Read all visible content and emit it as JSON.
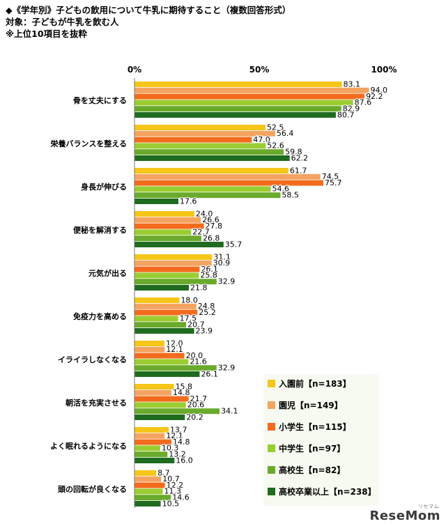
{
  "header": {
    "title": "◆《学年別》子どもの飲用について牛乳に期待すること（複数回答形式）",
    "subject": "対象：子どもが牛乳を飲む人",
    "note": "※上位10項目を抜粋"
  },
  "watermark": {
    "text": "ReseMom",
    "kana": "リセマム"
  },
  "chart_data": {
    "type": "bar",
    "orientation": "horizontal",
    "x_ticks": [
      "0%",
      "50%",
      "100%"
    ],
    "xlim": [
      0,
      100
    ],
    "categories": [
      "骨を丈夫にする",
      "栄養バランスを整える",
      "身長が伸びる",
      "便秘を解消する",
      "元気が出る",
      "免疫力を高める",
      "イライラしなくなる",
      "朝活を充実させる",
      "よく眠れるようになる",
      "頭の回転が良くなる"
    ],
    "series": [
      {
        "name": "入園前【n=183】",
        "color": "#f5c518",
        "values": [
          83.1,
          52.5,
          61.7,
          24.0,
          31.1,
          18.0,
          12.0,
          15.8,
          13.7,
          8.7
        ],
        "labels": [
          "83.1",
          "52.5",
          "61.7",
          "24.0",
          "31.1",
          "18.0",
          "12.0",
          "15.8",
          "13.7",
          "8.7"
        ]
      },
      {
        "name": "園児【n=149】",
        "color": "#f4a460",
        "values": [
          94.0,
          56.4,
          74.5,
          26.6,
          30.9,
          24.8,
          12.1,
          14.8,
          12.1,
          10.7
        ],
        "labels": [
          "94.0",
          "56.4",
          "74.5",
          "26.6",
          "30.9",
          "24.8",
          "12.1",
          "14.8",
          "12.1",
          "10.7"
        ]
      },
      {
        "name": "小学生【n=115】",
        "color": "#f36b1c",
        "values": [
          92.2,
          47.0,
          75.7,
          27.8,
          26.1,
          25.2,
          20.0,
          21.7,
          14.8,
          12.2
        ],
        "labels": [
          "92.2",
          "47.0",
          "75.7",
          "27.8",
          "26.1",
          "25.2",
          "20.0",
          "21.7",
          "14.8",
          "12.2"
        ]
      },
      {
        "name": "中学生【n=97】",
        "color": "#9acd32",
        "values": [
          87.6,
          52.6,
          54.6,
          22.7,
          25.8,
          17.5,
          21.6,
          20.6,
          10.3,
          11.3
        ],
        "labels": [
          "87.6",
          "52.6",
          "54.6",
          "22.7",
          "25.8",
          "17.5",
          "21.6",
          "20.6",
          "10.3",
          "11.3"
        ]
      },
      {
        "name": "高校生【n=82】",
        "color": "#6aaa2c",
        "values": [
          82.9,
          59.8,
          58.5,
          26.8,
          32.9,
          20.7,
          32.9,
          34.1,
          13.2,
          14.6
        ],
        "labels": [
          "82.9",
          "59.8",
          "58.5",
          "26.8",
          "32.9",
          "20.7",
          "32.9",
          "34.1",
          "13.2",
          "14.6"
        ]
      },
      {
        "name": "高校卒業以上【n=238】",
        "color": "#1f6b1f",
        "values": [
          80.7,
          62.2,
          17.6,
          35.7,
          21.8,
          23.9,
          26.1,
          20.2,
          16.0,
          10.5
        ],
        "labels": [
          "80.7",
          "62.2",
          "17.6",
          "35.7",
          "21.8",
          "23.9",
          "26.1",
          "20.2",
          "16.0",
          "10.5"
        ]
      }
    ],
    "legend_position": "bottom-right",
    "grid": false
  }
}
